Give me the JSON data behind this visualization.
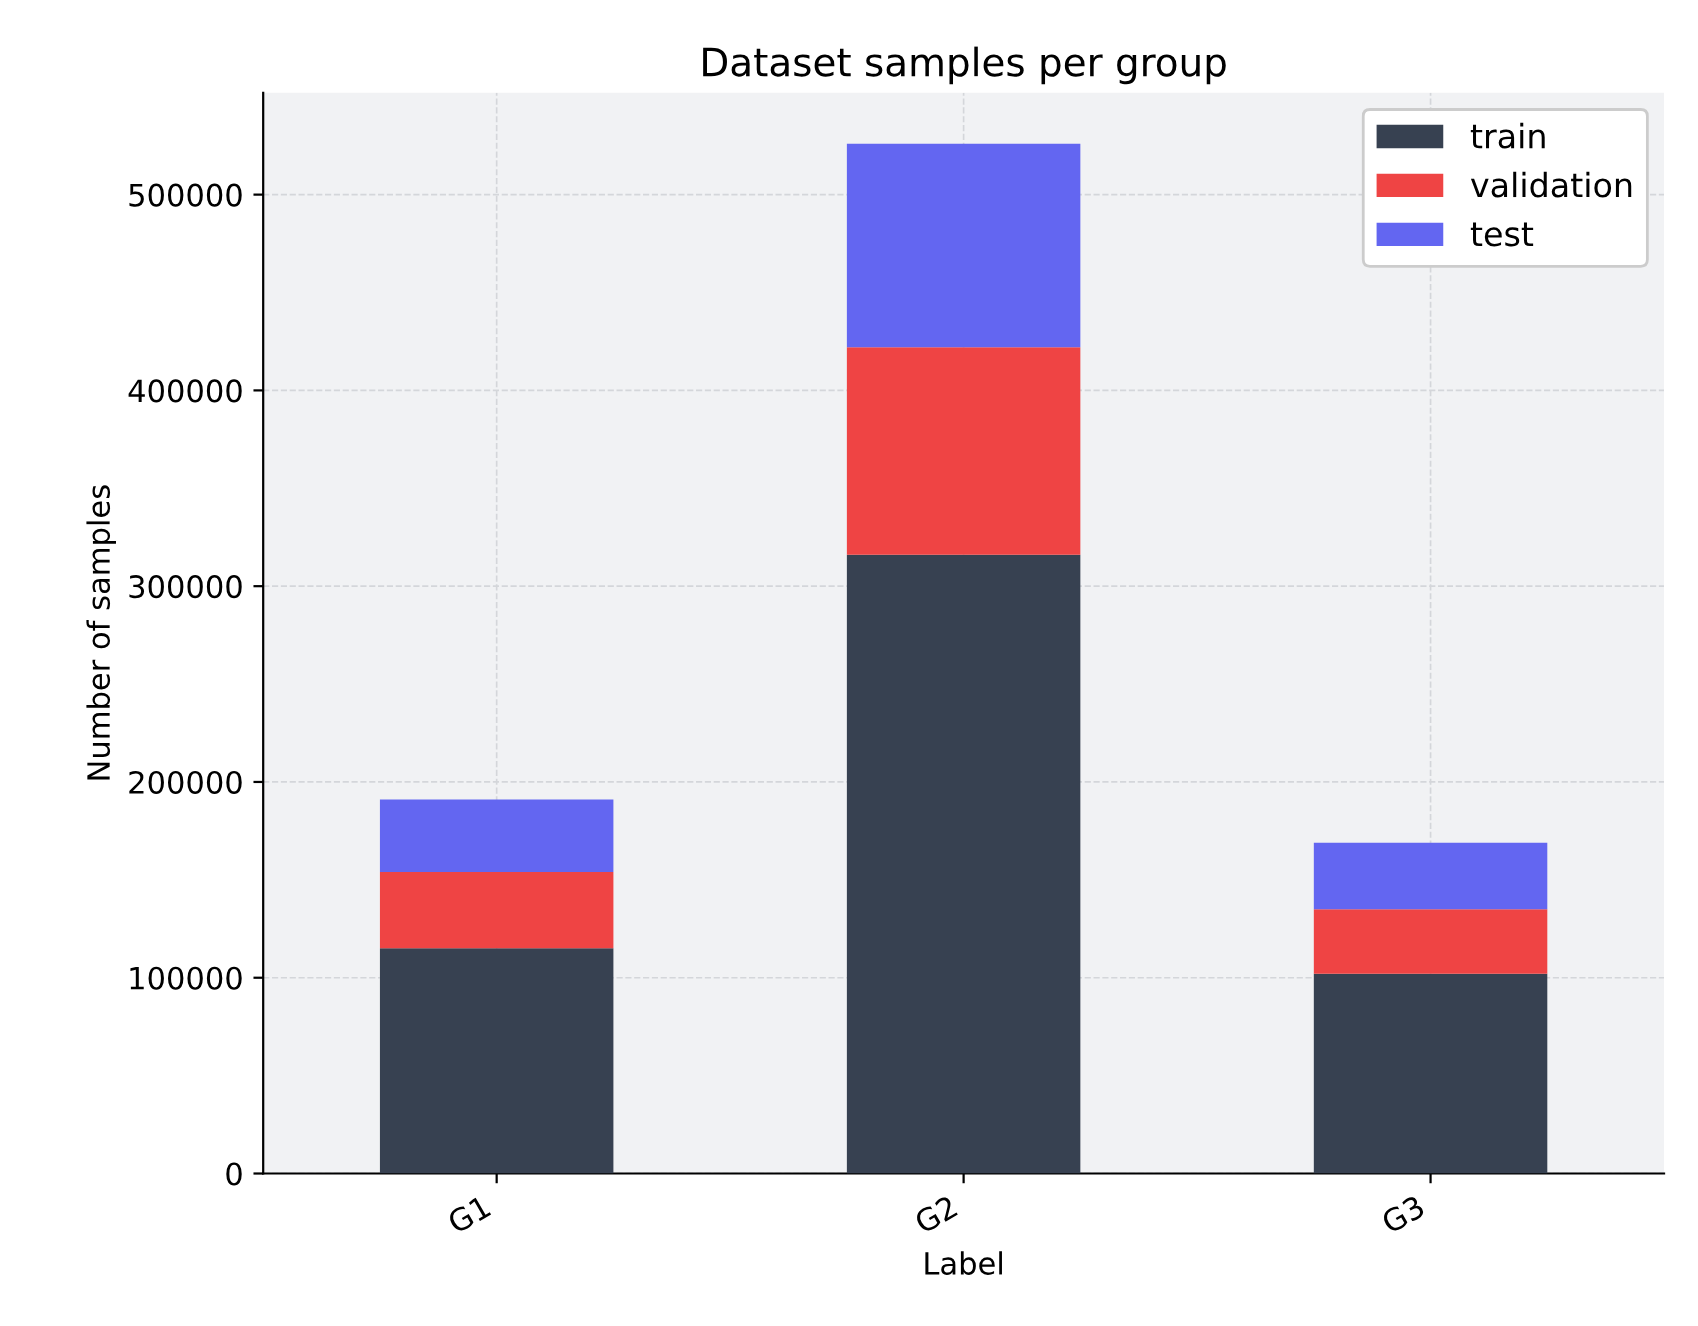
{
  "chart_data": {
    "type": "bar",
    "title": "Dataset samples per group",
    "xlabel": "Label",
    "ylabel": "Number of samples",
    "categories": [
      "G1",
      "G2",
      "G3"
    ],
    "series": [
      {
        "name": "train",
        "color": "#374151",
        "values": [
          115000,
          316000,
          102000
        ]
      },
      {
        "name": "validation",
        "color": "#ef4444",
        "values": [
          39000,
          106000,
          33000
        ]
      },
      {
        "name": "test",
        "color": "#6366f1",
        "values": [
          37000,
          104000,
          34000
        ]
      }
    ],
    "stacked": true,
    "ylim": [
      0,
      552000
    ],
    "yticks": [
      0,
      100000,
      200000,
      300000,
      400000,
      500000
    ],
    "grid": true,
    "legend": "top right"
  }
}
